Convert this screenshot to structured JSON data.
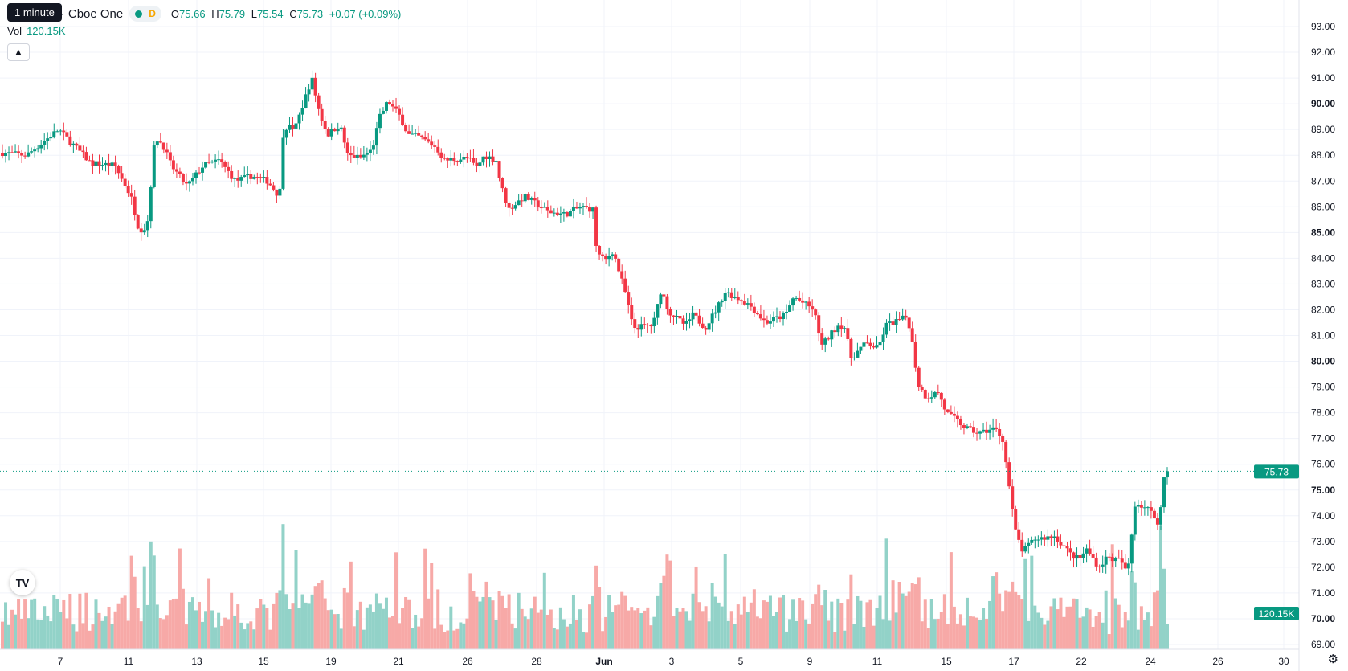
{
  "tooltip": "1 minute",
  "header": {
    "symbol": ", Inc. · 1h · Cboe One",
    "d_tag": "D",
    "ohlc": {
      "o_label": "O",
      "o": "75.66",
      "h_label": "H",
      "h": "75.79",
      "l_label": "L",
      "l": "75.54",
      "c_label": "C",
      "c": "75.73",
      "change": "+0.07 (+0.09%)"
    }
  },
  "volume": {
    "label": "Vol",
    "value": "120.15K"
  },
  "logo_text": "TV",
  "colors": {
    "up": "#089981",
    "down": "#f23645",
    "up_vol": "#92d2c8",
    "down_vol": "#f7a9a7",
    "grid": "#f0f3fa"
  },
  "icons": {
    "collapse": "chevron-up-icon",
    "settings": "gear-icon"
  },
  "chart_data": {
    "type": "candlestick",
    "y_axis": {
      "min": 69,
      "max": 93,
      "ticks": [
        "93.00",
        "92.00",
        "91.00",
        "90.00",
        "89.00",
        "88.00",
        "87.00",
        "86.00",
        "85.00",
        "84.00",
        "83.00",
        "82.00",
        "81.00",
        "80.00",
        "79.00",
        "78.00",
        "77.00",
        "76.00",
        "75.00",
        "74.00",
        "73.00",
        "72.00",
        "71.00",
        "70.00",
        "69.00"
      ]
    },
    "x_axis": {
      "ticks": [
        "7",
        "11",
        "13",
        "15",
        "19",
        "21",
        "26",
        "28",
        "Jun",
        "3",
        "5",
        "9",
        "11",
        "15",
        "17",
        "22",
        "24",
        "26",
        "30"
      ]
    },
    "last_price": "75.73",
    "last_volume": "120.15K",
    "grid": true,
    "bar_count": 362,
    "price_path": [
      [
        0,
        88.1
      ],
      [
        30,
        88.0
      ],
      [
        70,
        89.0
      ],
      [
        110,
        87.7
      ],
      [
        140,
        87.6
      ],
      [
        150,
        87.0
      ],
      [
        160,
        86.4
      ],
      [
        170,
        85.1
      ],
      [
        180,
        85.2
      ],
      [
        190,
        88.7
      ],
      [
        200,
        88.4
      ],
      [
        210,
        87.6
      ],
      [
        230,
        86.8
      ],
      [
        250,
        87.6
      ],
      [
        270,
        87.8
      ],
      [
        290,
        87.0
      ],
      [
        310,
        87.2
      ],
      [
        330,
        87.0
      ],
      [
        345,
        86.4
      ],
      [
        350,
        89.1
      ],
      [
        365,
        89.1
      ],
      [
        385,
        91.0
      ],
      [
        395,
        89.6
      ],
      [
        405,
        88.8
      ],
      [
        420,
        89.2
      ],
      [
        430,
        88.0
      ],
      [
        445,
        87.9
      ],
      [
        460,
        88.2
      ],
      [
        470,
        89.5
      ],
      [
        480,
        90.1
      ],
      [
        495,
        89.5
      ],
      [
        505,
        88.8
      ],
      [
        520,
        88.7
      ],
      [
        540,
        88.3
      ],
      [
        550,
        87.8
      ],
      [
        580,
        87.9
      ],
      [
        590,
        87.5
      ],
      [
        600,
        88.0
      ],
      [
        615,
        87.8
      ],
      [
        620,
        86.9
      ],
      [
        630,
        85.9
      ],
      [
        650,
        86.4
      ],
      [
        680,
        85.8
      ],
      [
        700,
        85.7
      ],
      [
        720,
        86.0
      ],
      [
        735,
        85.9
      ],
      [
        740,
        84.2
      ],
      [
        750,
        83.9
      ],
      [
        760,
        84.3
      ],
      [
        775,
        82.7
      ],
      [
        785,
        81.3
      ],
      [
        810,
        81.4
      ],
      [
        820,
        82.8
      ],
      [
        830,
        81.9
      ],
      [
        850,
        81.4
      ],
      [
        860,
        81.8
      ],
      [
        875,
        81.3
      ],
      [
        890,
        82.1
      ],
      [
        900,
        82.7
      ],
      [
        930,
        82.2
      ],
      [
        950,
        81.5
      ],
      [
        975,
        81.8
      ],
      [
        985,
        82.5
      ],
      [
        1010,
        82.0
      ],
      [
        1020,
        80.6
      ],
      [
        1040,
        81.4
      ],
      [
        1050,
        81.3
      ],
      [
        1055,
        80.1
      ],
      [
        1075,
        80.7
      ],
      [
        1090,
        80.5
      ],
      [
        1100,
        81.4
      ],
      [
        1125,
        81.7
      ],
      [
        1130,
        81.3
      ],
      [
        1140,
        79.1
      ],
      [
        1150,
        78.6
      ],
      [
        1165,
        78.8
      ],
      [
        1175,
        78.0
      ],
      [
        1200,
        77.4
      ],
      [
        1215,
        77.2
      ],
      [
        1235,
        77.4
      ],
      [
        1245,
        77.0
      ],
      [
        1250,
        75.9
      ],
      [
        1260,
        73.5
      ],
      [
        1270,
        72.6
      ],
      [
        1285,
        73.1
      ],
      [
        1310,
        73.2
      ],
      [
        1330,
        72.5
      ],
      [
        1340,
        72.3
      ],
      [
        1350,
        72.7
      ],
      [
        1365,
        72.0
      ],
      [
        1375,
        72.4
      ],
      [
        1395,
        72.2
      ],
      [
        1400,
        71.6
      ],
      [
        1410,
        74.5
      ],
      [
        1425,
        74.3
      ],
      [
        1440,
        73.7
      ],
      [
        1446,
        75.5
      ],
      [
        1450,
        75.73
      ]
    ],
    "volume_scale": "relative"
  }
}
